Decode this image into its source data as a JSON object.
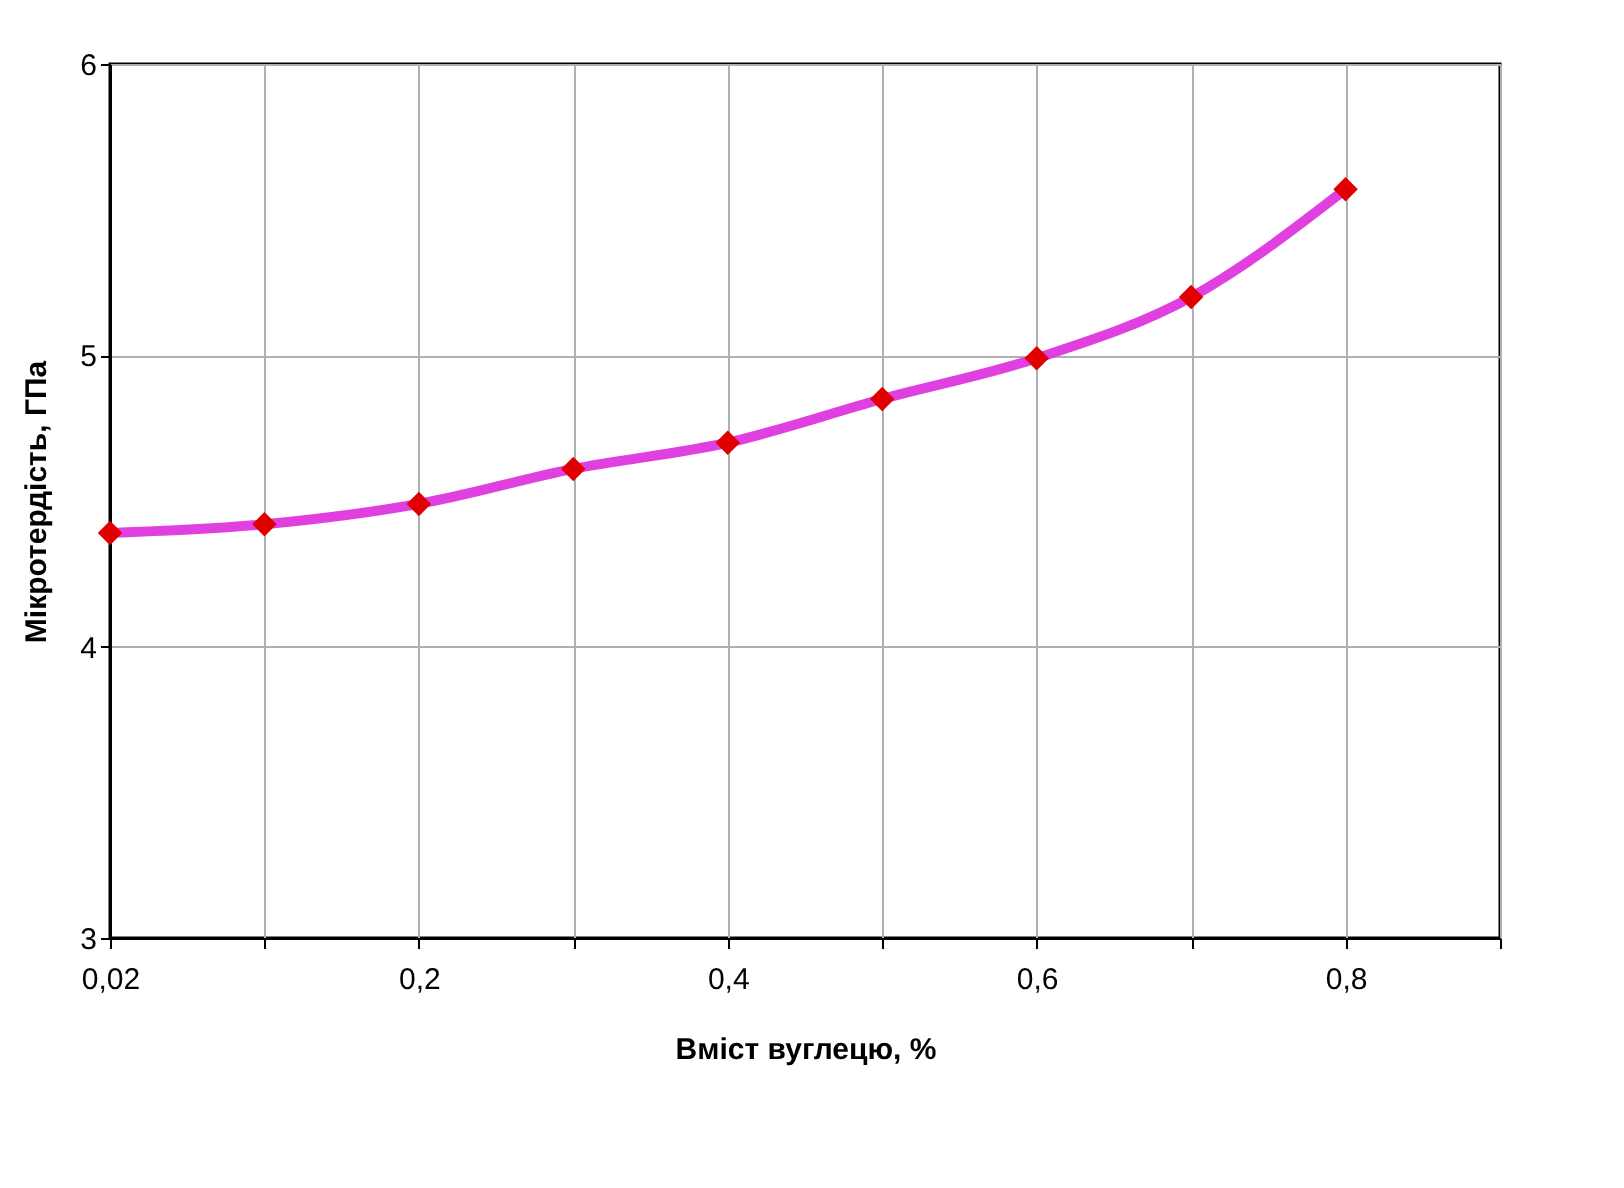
{
  "chart_data": {
    "type": "line",
    "xlabel": "Вміст вуглецю, %",
    "ylabel": "Мікротердість, ГПа",
    "categories": [
      "0,02",
      null,
      "0,2",
      null,
      "0,4",
      null,
      "0,6",
      null,
      "0,8",
      null
    ],
    "series": [
      {
        "color": "#e040e0",
        "colors": [
          "#e00000",
          "#e00000",
          "#e00000",
          "#e00000",
          "#e00000",
          "#e00000",
          "#e00000",
          "#e00000",
          "#e00000",
          "#e00000"
        ],
        "values": [
          4.39,
          4.42,
          4.49,
          4.61,
          4.7,
          4.85,
          4.99,
          5.2,
          5.57,
          null
        ]
      }
    ],
    "ylim": [
      3,
      6
    ],
    "yticks": [
      3,
      4,
      5,
      6
    ],
    "grid": true,
    "marker": "diamond",
    "line_style": "solid"
  }
}
